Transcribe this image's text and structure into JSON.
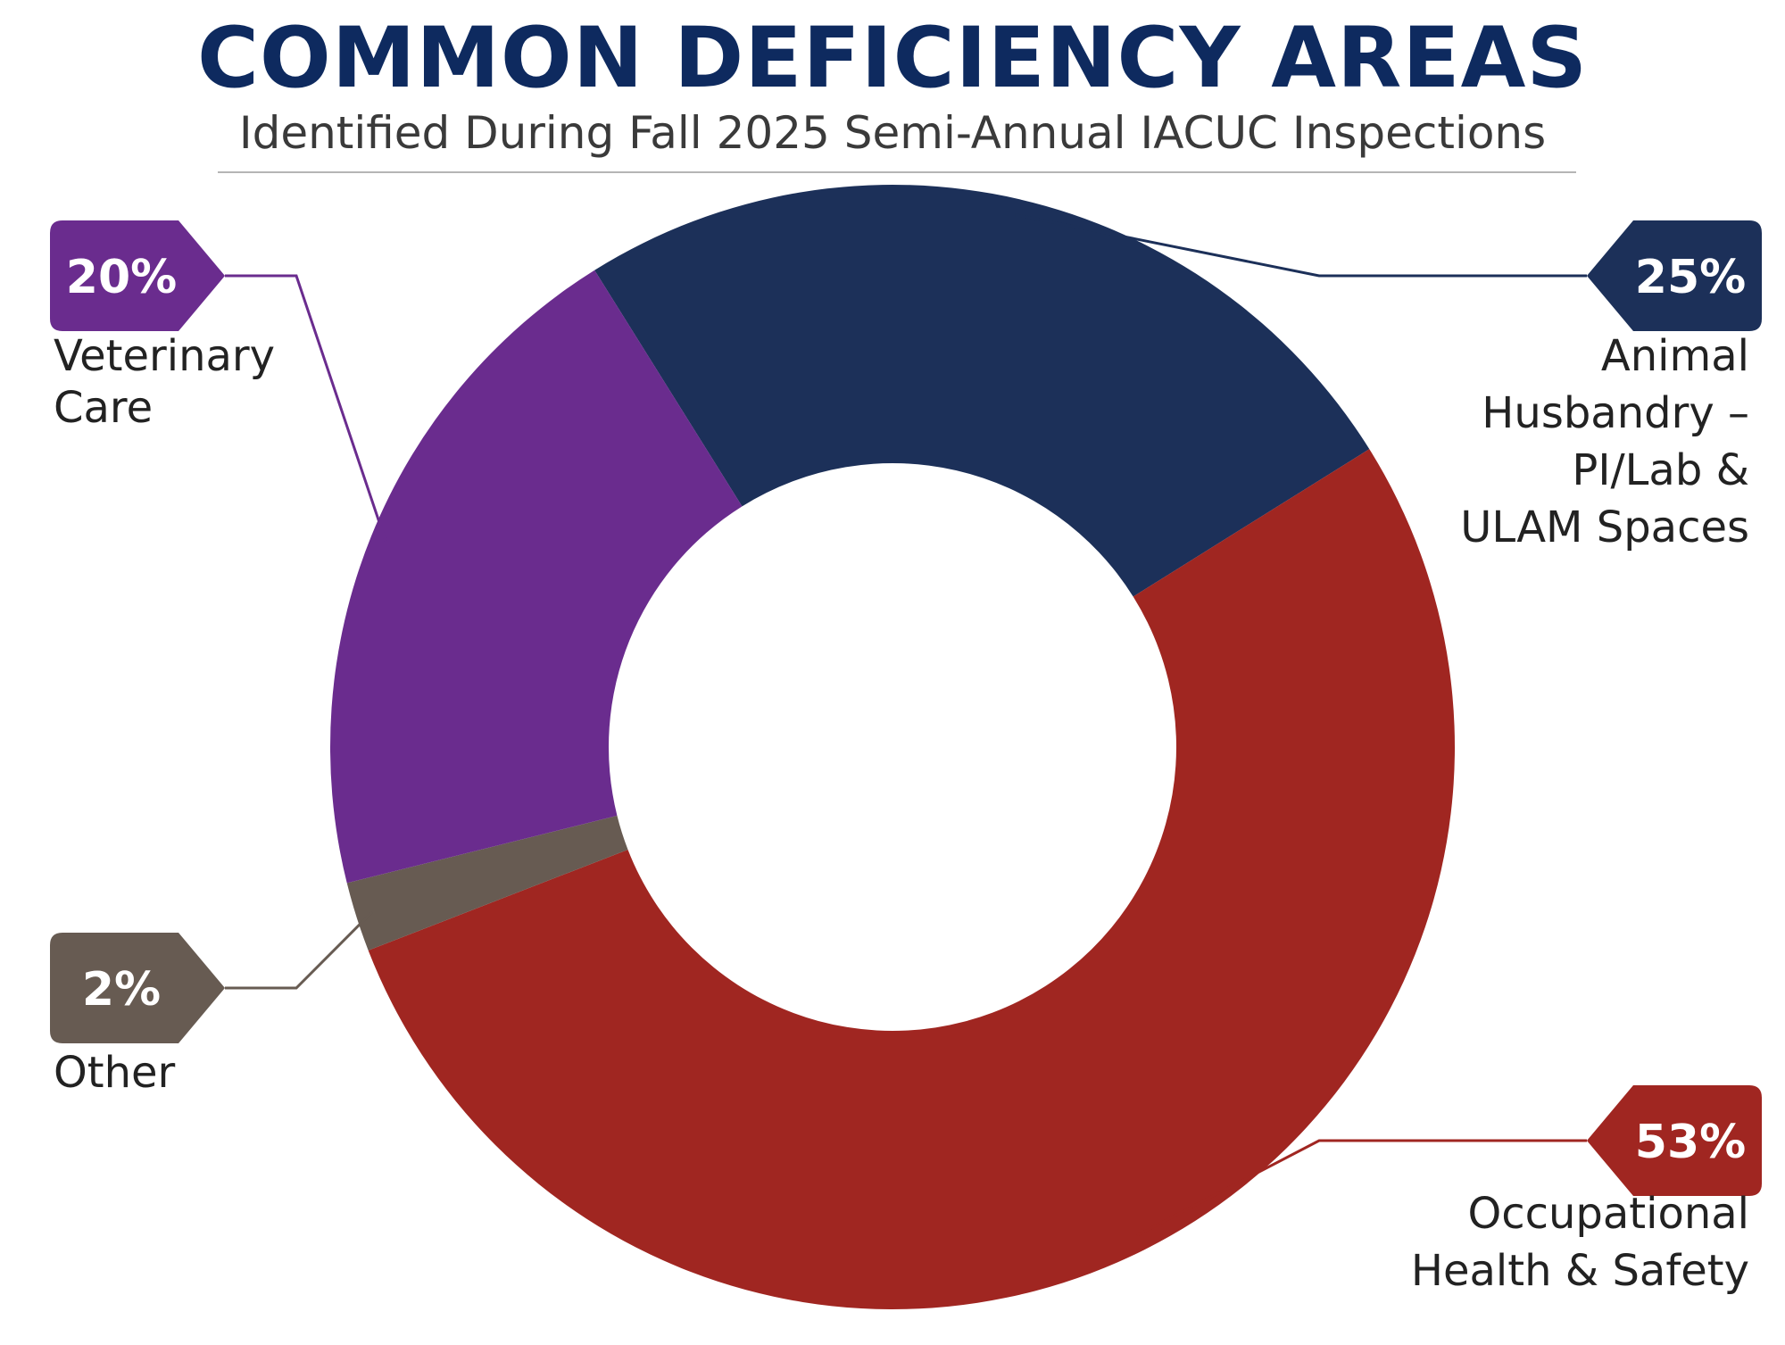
{
  "chart_data": {
    "type": "pie",
    "style": "donut",
    "title": "COMMON DEFICIENCY AREAS",
    "subtitle": "Identified During Fall 2025 Semi-Annual IACUC Inspections",
    "slices": [
      {
        "label_lines": [
          "Animal",
          "Husbandry –",
          "PI/Lab &",
          "ULAM Spaces"
        ],
        "value": 25,
        "value_label": "25%",
        "color": "#1c3059"
      },
      {
        "label_lines": [
          "Occupational",
          "Health & Safety"
        ],
        "value": 53,
        "value_label": "53%",
        "color": "#a02621"
      },
      {
        "label_lines": [
          "Other"
        ],
        "value": 2,
        "value_label": "2%",
        "color": "#675b52"
      },
      {
        "label_lines": [
          "Veterinary",
          "Care"
        ],
        "value": 20,
        "value_label": "20%",
        "color": "#6a2c8e"
      }
    ]
  },
  "colors": {
    "title": "#0e2a5f",
    "subtitle": "#3a3a3a",
    "rule": "#b5b5b5"
  }
}
